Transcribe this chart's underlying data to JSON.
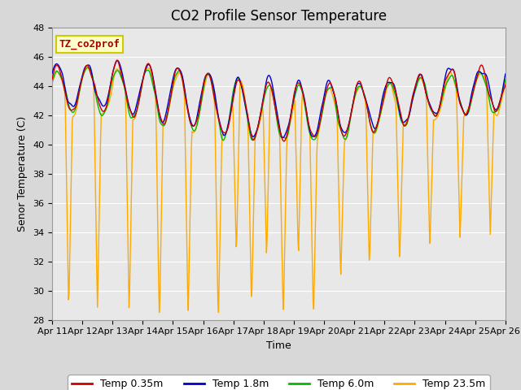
{
  "title": "CO2 Profile Sensor Temperature",
  "xlabel": "Time",
  "ylabel": "Senor Temperature (C)",
  "ylim": [
    28,
    48
  ],
  "yticks": [
    28,
    30,
    32,
    34,
    36,
    38,
    40,
    42,
    44,
    46,
    48
  ],
  "date_labels": [
    "Apr 11",
    "Apr 12",
    "Apr 13",
    "Apr 14",
    "Apr 15",
    "Apr 16",
    "Apr 17",
    "Apr 18",
    "Apr 19",
    "Apr 20",
    "Apr 21",
    "Apr 22",
    "Apr 23",
    "Apr 24",
    "Apr 25",
    "Apr 26"
  ],
  "legend_labels": [
    "Temp 0.35m",
    "Temp 1.8m",
    "Temp 6.0m",
    "Temp 23.5m"
  ],
  "legend_colors": [
    "#cc0000",
    "#0000cc",
    "#00bb00",
    "#ffaa00"
  ],
  "annotation_text": "TZ_co2prof",
  "annotation_color": "#aa0000",
  "annotation_bg": "#ffffcc",
  "annotation_edge": "#cccc00",
  "fig_facecolor": "#d8d8d8",
  "ax_facecolor": "#e8e8e8",
  "grid_color": "#ffffff",
  "title_fontsize": 12,
  "axis_fontsize": 9,
  "tick_fontsize": 8,
  "legend_fontsize": 9,
  "linewidth": 1.0,
  "n_points": 720
}
